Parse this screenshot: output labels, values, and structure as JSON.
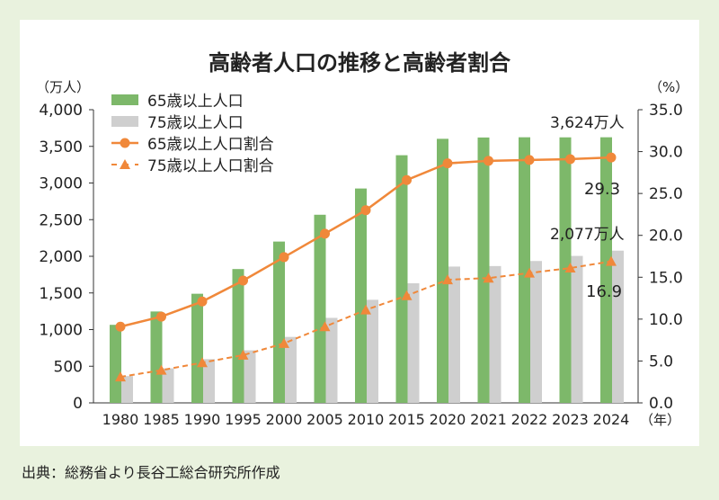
{
  "chart_data": {
    "type": "bar",
    "title": "高齢者人口の推移と高齢者割合",
    "ylabel": "（万人）",
    "y2label": "（%）",
    "xlabel": "（年）",
    "ylim": [
      0,
      4000
    ],
    "y2lim": [
      0,
      35
    ],
    "yticks": [
      "0",
      "500",
      "1,000",
      "1,500",
      "2,000",
      "2,500",
      "3,000",
      "3,500",
      "4,000"
    ],
    "y2ticks": [
      "0.0",
      "5.0",
      "10.0",
      "15.0",
      "20.0",
      "25.0",
      "30.0",
      "35.0"
    ],
    "categories": [
      "1980",
      "1985",
      "1990",
      "1995",
      "2000",
      "2005",
      "2010",
      "2015",
      "2020",
      "2021",
      "2022",
      "2023",
      "2024"
    ],
    "series": [
      {
        "name": "65歳以上人口",
        "type": "bar",
        "axis": "left",
        "color": "#7db86a",
        "values": [
          1065,
          1247,
          1489,
          1826,
          2201,
          2567,
          2925,
          3379,
          3603,
          3621,
          3624,
          3623,
          3624
        ]
      },
      {
        "name": "75歳以上人口",
        "type": "bar",
        "axis": "left",
        "color": "#cfcfcf",
        "values": [
          366,
          471,
          597,
          717,
          900,
          1160,
          1407,
          1632,
          1860,
          1867,
          1936,
          2005,
          2077
        ]
      },
      {
        "name": "65歳以上人口割合",
        "type": "line",
        "axis": "right",
        "color": "#f0883a",
        "values": [
          9.1,
          10.3,
          12.1,
          14.6,
          17.4,
          20.2,
          23.0,
          26.6,
          28.6,
          28.9,
          29.0,
          29.1,
          29.3
        ]
      },
      {
        "name": "75歳以上人口割合",
        "type": "line",
        "axis": "right",
        "color": "#f0883a",
        "dashed": true,
        "values": [
          3.1,
          3.9,
          4.8,
          5.7,
          7.1,
          9.1,
          11.1,
          12.8,
          14.7,
          14.9,
          15.5,
          16.1,
          16.9
        ]
      }
    ],
    "annotations": [
      "3,624万人",
      "29.3",
      "2,077万人",
      "16.9"
    ],
    "legend": "top-left"
  },
  "source": "出典：総務省より長谷工総合研究所作成"
}
